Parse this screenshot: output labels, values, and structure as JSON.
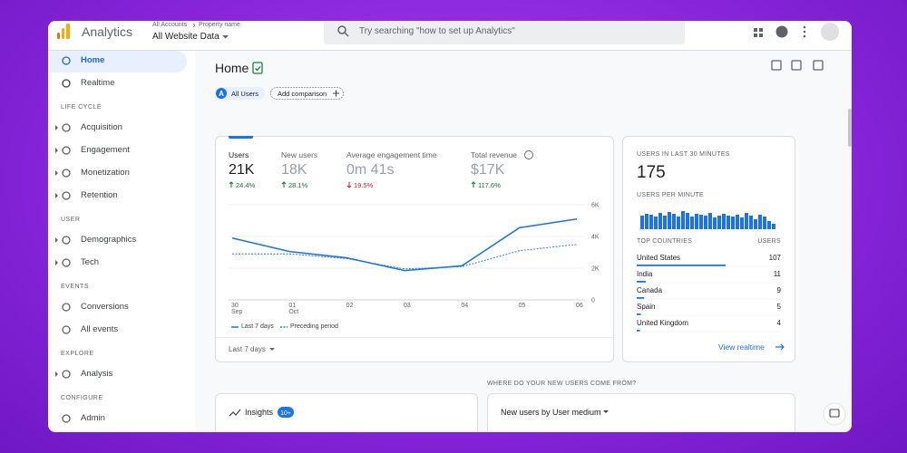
{
  "header": {
    "app_name": "Analytics",
    "account": "All Accounts",
    "property": "Property name",
    "view": "All Website Data",
    "search_placeholder": "Try searching \"how to set up Analytics\""
  },
  "nav": {
    "top": [
      "Home",
      "Realtime"
    ],
    "sections": [
      {
        "title": "LIFE CYCLE",
        "items": [
          {
            "label": "Acquisition",
            "expandable": true
          },
          {
            "label": "Engagement",
            "expandable": true
          },
          {
            "label": "Monetization",
            "expandable": true
          },
          {
            "label": "Retention",
            "expandable": true
          }
        ]
      },
      {
        "title": "USER",
        "items": [
          {
            "label": "Demographics",
            "expandable": true
          },
          {
            "label": "Tech",
            "expandable": true
          }
        ]
      },
      {
        "title": "EVENTS",
        "items": [
          {
            "label": "Conversions",
            "expandable": false
          },
          {
            "label": "All events",
            "expandable": false
          }
        ]
      },
      {
        "title": "EXPLORE",
        "items": [
          {
            "label": "Analysis",
            "expandable": true
          }
        ]
      },
      {
        "title": "CONFIGURE",
        "items": [
          {
            "label": "Admin",
            "expandable": false
          }
        ]
      }
    ]
  },
  "page": {
    "title": "Home",
    "segment_initial": "A",
    "segment": "All Users",
    "add_comparison": "Add comparison"
  },
  "overview": {
    "metrics": [
      {
        "label": "Users",
        "value": "21K",
        "change": "24.4%",
        "trend": "up"
      },
      {
        "label": "New users",
        "value": "18K",
        "change": "28.1%",
        "trend": "up"
      },
      {
        "label": "Average engagement time",
        "value": "0m 41s",
        "change": "19.5%",
        "trend": "down"
      },
      {
        "label": "Total revenue",
        "value": "$17K",
        "change": "117.6%",
        "trend": "up"
      }
    ],
    "chart": {
      "type": "line",
      "categories": [
        "30\nSep",
        "01\nOct",
        "02",
        "03",
        "04",
        "05",
        "06"
      ],
      "series": [
        {
          "name": "Last 7 days",
          "color": "#1a73e8",
          "dashed": false,
          "values": [
            3900,
            3050,
            2650,
            1850,
            2150,
            4550,
            5100
          ]
        },
        {
          "name": "Preceding period",
          "color": "#1a73e8",
          "dashed": true,
          "values": [
            2900,
            2900,
            2600,
            1950,
            2100,
            3100,
            3500
          ]
        }
      ],
      "ylim": [
        0,
        6000
      ],
      "yticks": [
        0,
        {
          "value": 2000,
          "label": "2K"
        },
        {
          "value": 4000,
          "label": "4K"
        },
        {
          "value": 6000,
          "label": "6K"
        }
      ],
      "grid": true
    },
    "period": "Last 7 days"
  },
  "realtime": {
    "title": "USERS IN LAST 30 MINUTES",
    "users": "175",
    "per_minute_title": "USERS PER MINUTE",
    "per_minute": [
      15,
      17,
      16,
      14,
      18,
      15,
      19,
      17,
      14,
      20,
      18,
      14,
      17,
      16,
      15,
      18,
      13,
      15,
      17,
      15,
      14,
      16,
      13,
      18,
      15,
      11,
      16,
      14,
      9,
      6
    ],
    "table_headers": [
      "TOP COUNTRIES",
      "USERS"
    ],
    "countries": [
      {
        "name": "United States",
        "users": 107
      },
      {
        "name": "India",
        "users": 11
      },
      {
        "name": "Canada",
        "users": 9
      },
      {
        "name": "Spain",
        "users": 5
      },
      {
        "name": "United Kingdom",
        "users": 4
      }
    ],
    "link": "View realtime"
  },
  "bottom": {
    "question": "WHERE DO YOUR NEW USERS COME FROM?",
    "insights": "Insights",
    "insights_count": "10+",
    "card_title": "New users by User medium"
  }
}
